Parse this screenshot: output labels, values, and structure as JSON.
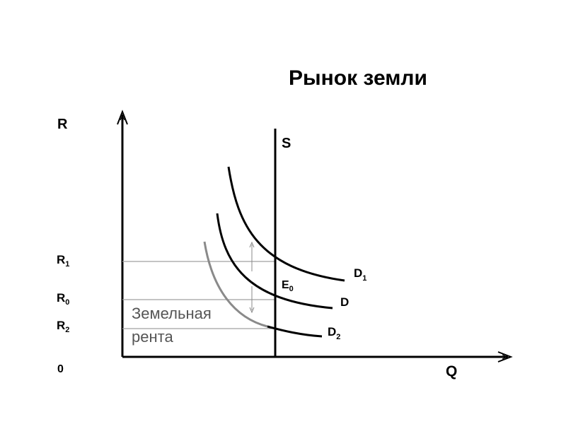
{
  "title": "Рынок земли",
  "axes": {
    "y_label": "R",
    "x_label": "Q",
    "origin_label": "0"
  },
  "supply_label": "S",
  "price_levels": {
    "r1": {
      "letter": "R",
      "sub": "1"
    },
    "r0": {
      "letter": "R",
      "sub": "0"
    },
    "r2": {
      "letter": "R",
      "sub": "2"
    }
  },
  "equilibrium": {
    "letter": "E",
    "sub": "0"
  },
  "curves": {
    "d1": {
      "letter": "D",
      "sub": "1"
    },
    "d": {
      "letter": "D",
      "sub": ""
    },
    "d2": {
      "letter": "D",
      "sub": "2"
    }
  },
  "rent_text": {
    "line1": "Земельная",
    "line2": "рента"
  },
  "colors": {
    "axis": "#000000",
    "curve": "#000000",
    "curve_grey": "#8a8a8a",
    "guide": "#a0a0a0"
  }
}
